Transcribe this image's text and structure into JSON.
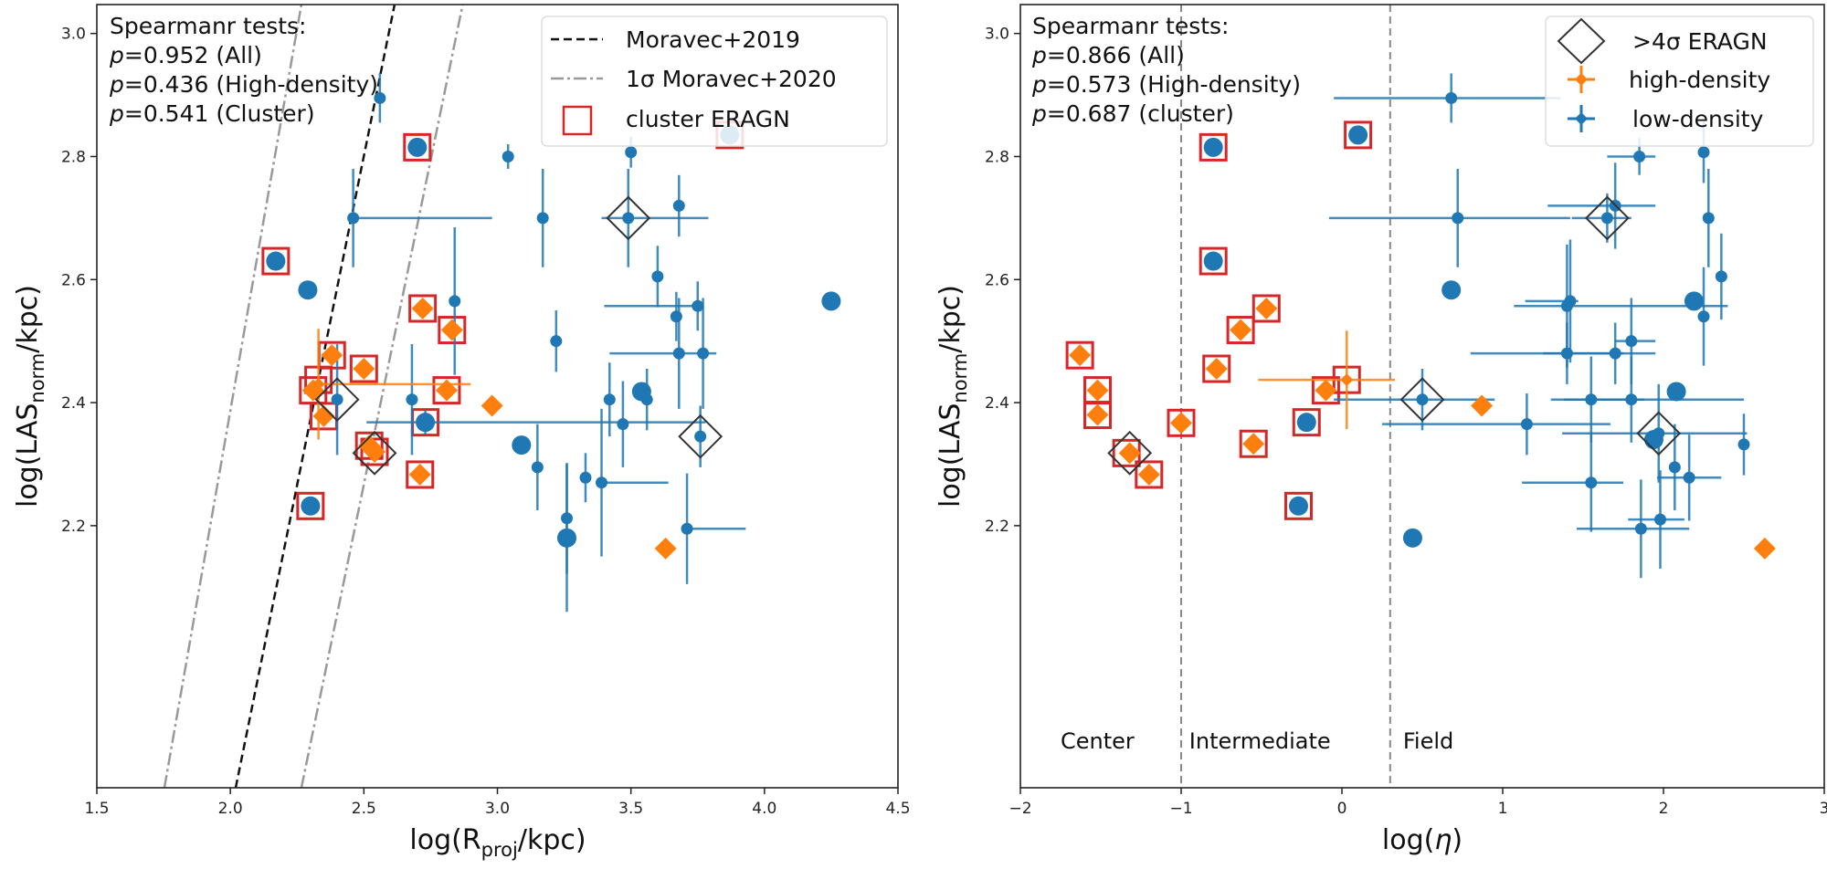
{
  "chart_data": [
    {
      "type": "scatter",
      "panel": "left",
      "xlabel": "log(R_proj/kpc)",
      "xlabel_main": "log(R",
      "xlabel_sub": "proj",
      "xlabel_tail": "/kpc)",
      "ylabel_main": "log(LAS",
      "ylabel_sub": "norm",
      "ylabel_tail": "/kpc)",
      "xlim": [
        1.5,
        4.5
      ],
      "ylim": [
        1.774,
        3.047
      ],
      "xticks": [
        "1.5",
        "2.0",
        "2.5",
        "3.0",
        "3.5",
        "4.0",
        "4.5"
      ],
      "xtick_values": [
        1.5,
        2.0,
        2.5,
        3.0,
        3.5,
        4.0,
        4.5
      ],
      "yticks": [
        "2.2",
        "2.4",
        "2.6",
        "2.8",
        "3.0"
      ],
      "ytick_values": [
        2.2,
        2.4,
        2.6,
        2.8,
        3.0
      ],
      "grid": false,
      "stats": {
        "title": "Spearmanr tests:",
        "lines": [
          {
            "symbol": "p",
            "value": "=0.952 (All)"
          },
          {
            "symbol": "p",
            "value": "=0.436 (High-density)"
          },
          {
            "symbol": "p",
            "value": "=0.541 (Cluster)"
          }
        ]
      },
      "legend": {
        "placement": "top-right",
        "entries": [
          {
            "label": "Moravec+2019",
            "style": "dashed-black"
          },
          {
            "label": "1σ Moravec+2020",
            "style": "dashdot-gray"
          },
          {
            "label": "cluster ERAGN",
            "style": "red-square"
          }
        ]
      },
      "lines": [
        {
          "name": "Moravec+2019",
          "points": [
            [
              2.02,
              1.774
            ],
            [
              2.615,
              3.047
            ]
          ],
          "style": "dashed-black"
        },
        {
          "name": "1σ Moravec+2020 lower",
          "points": [
            [
              1.753,
              1.774
            ],
            [
              2.266,
              3.047
            ]
          ],
          "style": "dashdot-gray"
        },
        {
          "name": "1σ Moravec+2020 upper",
          "points": [
            [
              2.266,
              1.774
            ],
            [
              2.87,
              3.047
            ]
          ],
          "style": "dashdot-gray"
        }
      ],
      "series": [
        {
          "name": "low-density",
          "color": "#1f77b4",
          "points": [
            {
              "x": 2.56,
              "y": 2.895,
              "yerr": 0.04
            },
            {
              "x": 2.46,
              "y": 2.7,
              "xerr": [
                0.0,
                0.52
              ],
              "yerr": 0.08
            },
            {
              "x": 3.04,
              "y": 2.8,
              "yerr": 0.02
            },
            {
              "x": 3.17,
              "y": 2.7,
              "yerr": 0.08
            },
            {
              "x": 3.5,
              "y": 2.807,
              "yerr": 0.025
            },
            {
              "x": 3.49,
              "y": 2.7,
              "xerr": [
                0.1,
                0.3
              ],
              "yerr": 0.08
            },
            {
              "x": 3.68,
              "y": 2.72,
              "yerr": 0.05
            },
            {
              "x": 3.22,
              "y": 2.5,
              "yerr": 0.05
            },
            {
              "x": 2.84,
              "y": 2.565,
              "yerr": 0.12
            },
            {
              "x": 3.6,
              "y": 2.605,
              "yerr": 0.05
            },
            {
              "x": 3.67,
              "y": 2.54,
              "yerr": 0.04
            },
            {
              "x": 3.75,
              "y": 2.557,
              "xerr": [
                0.35,
                0.0
              ],
              "yerr": 0.04
            },
            {
              "x": 3.68,
              "y": 2.48,
              "yerr": 0.09
            },
            {
              "x": 3.77,
              "y": 2.48,
              "xerr": [
                0.35,
                0.05
              ],
              "yerr": 0.09
            },
            {
              "x": 2.4,
              "y": 2.405,
              "yerr": 0.09
            },
            {
              "x": 2.68,
              "y": 2.405,
              "yerr": 0.09
            },
            {
              "x": 3.42,
              "y": 2.405,
              "yerr": 0.06
            },
            {
              "x": 3.56,
              "y": 2.405,
              "yerr": 0.05
            },
            {
              "x": 3.47,
              "y": 2.365,
              "yerr": 0.07
            },
            {
              "x": 2.73,
              "y": 2.368,
              "xerr": [
                0.22,
                1.05
              ],
              "yerr": 0.02
            },
            {
              "x": 3.76,
              "y": 2.345,
              "yerr": 0.05
            },
            {
              "x": 3.15,
              "y": 2.295,
              "yerr": 0.07
            },
            {
              "x": 3.33,
              "y": 2.278,
              "yerr": 0.04
            },
            {
              "x": 3.39,
              "y": 2.27,
              "xerr": [
                0.0,
                0.25
              ],
              "yerr": 0.12
            },
            {
              "x": 3.26,
              "y": 2.212,
              "yerr": 0.09
            },
            {
              "x": 3.71,
              "y": 2.195,
              "xerr": [
                0.0,
                0.22
              ],
              "yerr": 0.09
            },
            {
              "x": 3.26,
              "y": 2.18,
              "yerr": 0.12
            }
          ],
          "large_points": [
            {
              "x": 2.7,
              "y": 2.815
            },
            {
              "x": 3.87,
              "y": 2.835
            },
            {
              "x": 2.17,
              "y": 2.63
            },
            {
              "x": 2.29,
              "y": 2.583
            },
            {
              "x": 4.25,
              "y": 2.565
            },
            {
              "x": 3.54,
              "y": 2.418
            },
            {
              "x": 2.73,
              "y": 2.368
            },
            {
              "x": 3.09,
              "y": 2.331
            },
            {
              "x": 2.3,
              "y": 2.232
            },
            {
              "x": 3.26,
              "y": 2.18
            }
          ]
        },
        {
          "name": "high-density",
          "color": "#ff7f0e",
          "points": [
            {
              "x": 2.72,
              "y": 2.553
            },
            {
              "x": 2.83,
              "y": 2.518
            },
            {
              "x": 2.38,
              "y": 2.477
            },
            {
              "x": 2.5,
              "y": 2.455
            },
            {
              "x": 2.81,
              "y": 2.42
            },
            {
              "x": 2.31,
              "y": 2.42
            },
            {
              "x": 2.33,
              "y": 2.43,
              "xerr": [
                0.0,
                0.57
              ],
              "yerr": 0.09
            },
            {
              "x": 2.35,
              "y": 2.378
            },
            {
              "x": 2.98,
              "y": 2.395
            },
            {
              "x": 2.52,
              "y": 2.33
            },
            {
              "x": 2.54,
              "y": 2.32
            },
            {
              "x": 2.71,
              "y": 2.283
            },
            {
              "x": 3.63,
              "y": 2.163
            }
          ]
        }
      ],
      "cluster_markers": [
        [
          2.17,
          2.63
        ],
        [
          2.7,
          2.815
        ],
        [
          3.87,
          2.835
        ],
        [
          2.72,
          2.553
        ],
        [
          2.83,
          2.518
        ],
        [
          2.38,
          2.477
        ],
        [
          2.5,
          2.455
        ],
        [
          2.81,
          2.42
        ],
        [
          2.31,
          2.42
        ],
        [
          2.33,
          2.437
        ],
        [
          2.35,
          2.378
        ],
        [
          2.73,
          2.368
        ],
        [
          2.52,
          2.33
        ],
        [
          2.54,
          2.32
        ],
        [
          2.71,
          2.283
        ],
        [
          2.3,
          2.232
        ]
      ],
      "eragn_4sigma": [
        [
          3.49,
          2.7
        ],
        [
          2.4,
          2.405
        ],
        [
          2.54,
          2.318
        ],
        [
          3.76,
          2.345
        ]
      ]
    },
    {
      "type": "scatter",
      "panel": "right",
      "xlabel": "log(η)",
      "xlabel_main": "log(",
      "xlabel_sym": "η",
      "xlabel_tail": ")",
      "ylabel_main": "log(LAS",
      "ylabel_sub": "norm",
      "ylabel_tail": "/kpc)",
      "xlim": [
        -2,
        3
      ],
      "ylim": [
        1.774,
        3.047
      ],
      "xticks": [
        "−2",
        "−1",
        "0",
        "1",
        "2",
        "3"
      ],
      "xtick_values": [
        -2,
        -1,
        0,
        1,
        2,
        3
      ],
      "yticks": [
        "2.2",
        "2.4",
        "2.6",
        "2.8",
        "3.0"
      ],
      "ytick_values": [
        2.2,
        2.4,
        2.6,
        2.8,
        3.0
      ],
      "grid": false,
      "stats": {
        "title": "Spearmanr tests:",
        "lines": [
          {
            "symbol": "p",
            "value": "=0.866 (All)"
          },
          {
            "symbol": "p",
            "value": "=0.573 (High-density)"
          },
          {
            "symbol": "p",
            "value": "=0.687 (cluster)"
          }
        ]
      },
      "legend": {
        "placement": "top-right",
        "entries": [
          {
            "label": ">4σ ERAGN",
            "style": "black-diamond"
          },
          {
            "label": "high-density",
            "style": "orange-errorbar"
          },
          {
            "label": "low-density",
            "style": "blue-errorbar"
          }
        ]
      },
      "vlines": [
        -1.0,
        0.3
      ],
      "regions": [
        {
          "label": "Center",
          "x": -1.75
        },
        {
          "label": "Intermediate",
          "x": -0.95
        },
        {
          "label": "Field",
          "x": 0.38
        }
      ],
      "series": [
        {
          "name": "low-density",
          "color": "#1f77b4",
          "points": [
            {
              "x": 0.68,
              "y": 2.895,
              "xerr": [
                0.73,
                0.68
              ],
              "yerr": 0.04
            },
            {
              "x": 1.85,
              "y": 2.8,
              "xerr": [
                0.2,
                0.1
              ],
              "yerr": 0.03
            },
            {
              "x": 2.25,
              "y": 2.807,
              "yerr": 0.05
            },
            {
              "x": 0.72,
              "y": 2.7,
              "xerr": [
                0.8,
                0.7
              ],
              "yerr": 0.08
            },
            {
              "x": 1.65,
              "y": 2.7,
              "xerr": [
                0.22,
                0.15
              ],
              "yerr": 0.04
            },
            {
              "x": 1.7,
              "y": 2.72,
              "xerr": [
                0.42,
                0.25
              ],
              "yerr": 0.07
            },
            {
              "x": 2.28,
              "y": 2.7,
              "yerr": 0.08
            },
            {
              "x": 2.36,
              "y": 2.605,
              "yerr": 0.07
            },
            {
              "x": 2.25,
              "y": 2.54,
              "yerr": 0.08
            },
            {
              "x": 1.42,
              "y": 2.565,
              "xerr": [
                0.28,
                0.05
              ],
              "yerr": 0.1
            },
            {
              "x": 1.4,
              "y": 2.557,
              "xerr": [
                0.33,
                1.0
              ],
              "yerr": 0.1
            },
            {
              "x": 1.4,
              "y": 2.48,
              "xerr": [
                0.6,
                0.35
              ],
              "yerr": 0.05
            },
            {
              "x": 1.8,
              "y": 2.5,
              "xerr": [
                0.1,
                0.15
              ],
              "yerr": 0.07
            },
            {
              "x": 1.7,
              "y": 2.48,
              "xerr": [
                0.45,
                0.25
              ],
              "yerr": 0.05
            },
            {
              "x": 0.5,
              "y": 2.405,
              "xerr": [
                0.55,
                0.45
              ],
              "yerr": 0.05
            },
            {
              "x": 1.55,
              "y": 2.405,
              "xerr": [
                0.17,
                0.33
              ],
              "yerr": 0.07
            },
            {
              "x": 1.8,
              "y": 2.405,
              "xerr": [
                0.5,
                0.7
              ],
              "yerr": 0.07
            },
            {
              "x": 1.15,
              "y": 2.365,
              "xerr": [
                0.9,
                0.52
              ],
              "yerr": 0.05
            },
            {
              "x": 1.97,
              "y": 2.35,
              "xerr": [
                0.6,
                0.55
              ],
              "yerr": 0.08
            },
            {
              "x": 2.5,
              "y": 2.332,
              "yerr": 0.05
            },
            {
              "x": 2.07,
              "y": 2.295,
              "yerr": 0.07
            },
            {
              "x": 2.16,
              "y": 2.278,
              "xerr": [
                0.2,
                0.2
              ],
              "yerr": 0.07
            },
            {
              "x": 1.55,
              "y": 2.27,
              "xerr": [
                0.43,
                0.2
              ],
              "yerr": 0.08
            },
            {
              "x": 1.98,
              "y": 2.21,
              "xerr": [
                0.2,
                0.15
              ],
              "yerr": 0.08
            },
            {
              "x": 1.86,
              "y": 2.195,
              "xerr": [
                0.4,
                0.3
              ],
              "yerr": 0.08
            }
          ],
          "large_points": [
            {
              "x": -0.8,
              "y": 2.815
            },
            {
              "x": 0.1,
              "y": 2.835
            },
            {
              "x": -0.8,
              "y": 2.63
            },
            {
              "x": 0.68,
              "y": 2.583
            },
            {
              "x": 2.19,
              "y": 2.565
            },
            {
              "x": 2.08,
              "y": 2.418
            },
            {
              "x": -0.22,
              "y": 2.368
            },
            {
              "x": 1.94,
              "y": 2.34
            },
            {
              "x": -0.27,
              "y": 2.232
            },
            {
              "x": 0.44,
              "y": 2.18
            }
          ]
        },
        {
          "name": "high-density",
          "color": "#ff7f0e",
          "points": [
            {
              "x": -0.47,
              "y": 2.553
            },
            {
              "x": -0.63,
              "y": 2.518
            },
            {
              "x": -1.63,
              "y": 2.477
            },
            {
              "x": -0.78,
              "y": 2.455
            },
            {
              "x": -1.52,
              "y": 2.42
            },
            {
              "x": -0.1,
              "y": 2.42
            },
            {
              "x": 0.03,
              "y": 2.437,
              "xerr": [
                0.55,
                0.3
              ],
              "yerr": 0.08
            },
            {
              "x": -1.52,
              "y": 2.38
            },
            {
              "x": -1.0,
              "y": 2.367
            },
            {
              "x": -0.55,
              "y": 2.333
            },
            {
              "x": -1.32,
              "y": 2.318
            },
            {
              "x": -1.2,
              "y": 2.283
            },
            {
              "x": 0.87,
              "y": 2.395
            },
            {
              "x": 2.63,
              "y": 2.163
            }
          ]
        }
      ],
      "cluster_markers": [
        [
          -0.8,
          2.815
        ],
        [
          0.1,
          2.835
        ],
        [
          -0.8,
          2.63
        ],
        [
          -0.47,
          2.553
        ],
        [
          -0.63,
          2.518
        ],
        [
          -1.63,
          2.477
        ],
        [
          -0.78,
          2.455
        ],
        [
          -1.52,
          2.42
        ],
        [
          -0.1,
          2.42
        ],
        [
          0.03,
          2.437
        ],
        [
          -1.52,
          2.38
        ],
        [
          -1.0,
          2.367
        ],
        [
          -0.22,
          2.368
        ],
        [
          -0.55,
          2.333
        ],
        [
          -1.34,
          2.318
        ],
        [
          -1.2,
          2.283
        ],
        [
          -0.27,
          2.232
        ]
      ],
      "eragn_4sigma": [
        [
          1.65,
          2.7
        ],
        [
          0.5,
          2.405
        ],
        [
          -1.32,
          2.318
        ],
        [
          1.97,
          2.35
        ]
      ]
    }
  ]
}
